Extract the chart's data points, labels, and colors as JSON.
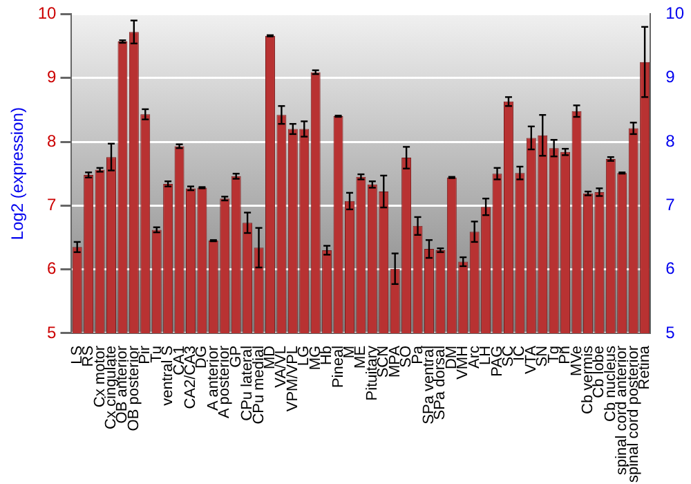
{
  "chart_data": {
    "type": "bar",
    "ylabel": "Log2 (expression)",
    "categories": [
      "LS",
      "RS",
      "Cx motor",
      "Cx cingulate",
      "OB anterior",
      "OB posterior",
      "Pir",
      "Tu",
      "ventral S",
      "CA1",
      "CA2/CA3",
      "DG",
      "A anterior",
      "A posterior",
      "GP",
      "CPu lateral",
      "CPu medial",
      "MD",
      "VA/VL",
      "VPM/VPL",
      "LG",
      "MG",
      "Hb",
      "Pineal",
      "M",
      "ME",
      "Pituitary",
      "SCN",
      "MPA",
      "SO",
      "Pa",
      "SPa ventral",
      "SPa dorsal",
      "DM",
      "VMH",
      "Arc",
      "LH",
      "PAG",
      "SC",
      "IC",
      "VTA",
      "SN",
      "Tg",
      "Pn",
      "MVe",
      "Cb vermis",
      "Cb lobe",
      "Cb nucleus",
      "spinal cord anterior",
      "spinal cord posterior",
      "Retina"
    ],
    "values": [
      6.35,
      7.48,
      7.56,
      7.76,
      9.57,
      9.72,
      8.43,
      6.62,
      7.34,
      7.93,
      7.27,
      7.28,
      6.45,
      7.11,
      7.46,
      6.73,
      6.34,
      9.66,
      8.42,
      8.2,
      8.2,
      9.09,
      6.3,
      8.4,
      7.07,
      7.45,
      7.33,
      7.22,
      6.01,
      7.75,
      6.68,
      6.32,
      6.3,
      7.44,
      6.12,
      6.59,
      6.98,
      7.5,
      8.63,
      7.51,
      8.06,
      8.1,
      7.9,
      7.84,
      8.48,
      7.19,
      7.21,
      7.73,
      7.51,
      8.21,
      9.25
    ],
    "errors": [
      0.08,
      0.04,
      0.03,
      0.21,
      0.02,
      0.18,
      0.08,
      0.04,
      0.04,
      0.03,
      0.03,
      0.01,
      0.01,
      0.03,
      0.04,
      0.16,
      0.31,
      0.01,
      0.14,
      0.08,
      0.12,
      0.03,
      0.07,
      0.01,
      0.13,
      0.04,
      0.05,
      0.25,
      0.24,
      0.17,
      0.14,
      0.14,
      0.03,
      0.01,
      0.07,
      0.16,
      0.13,
      0.09,
      0.07,
      0.1,
      0.18,
      0.32,
      0.13,
      0.05,
      0.09,
      0.03,
      0.06,
      0.03,
      0.01,
      0.09,
      0.55
    ],
    "color": "#b83232",
    "ylim": [
      5,
      10
    ],
    "yticks": [
      5,
      6,
      7,
      8,
      9,
      10
    ],
    "y2lim": [
      5,
      10
    ],
    "y2ticks": [
      5,
      6,
      7,
      8,
      9,
      10
    ],
    "grid": "y",
    "legend": false
  }
}
